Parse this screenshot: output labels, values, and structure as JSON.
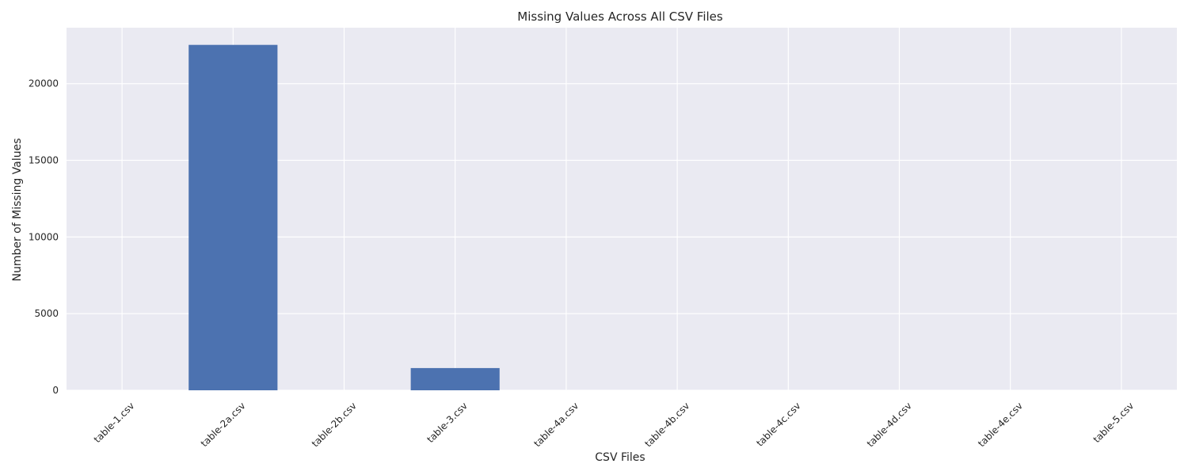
{
  "chart_data": {
    "type": "bar",
    "title": "Missing Values Across All CSV Files",
    "xlabel": "CSV Files",
    "ylabel": "Number of Missing Values",
    "categories": [
      "table-1.csv",
      "table-2a.csv",
      "table-2b.csv",
      "table-3.csv",
      "table-4a.csv",
      "table-4b.csv",
      "table-4c.csv",
      "table-4d.csv",
      "table-4e.csv",
      "table-5.csv"
    ],
    "values": [
      0,
      22530,
      0,
      1450,
      0,
      0,
      0,
      0,
      0,
      0
    ],
    "yticks": [
      0,
      5000,
      10000,
      15000,
      20000
    ],
    "ylim": [
      0,
      23650
    ],
    "grid": true,
    "bar_color": "#4c72b0",
    "background_color": "#eaeaf2"
  }
}
